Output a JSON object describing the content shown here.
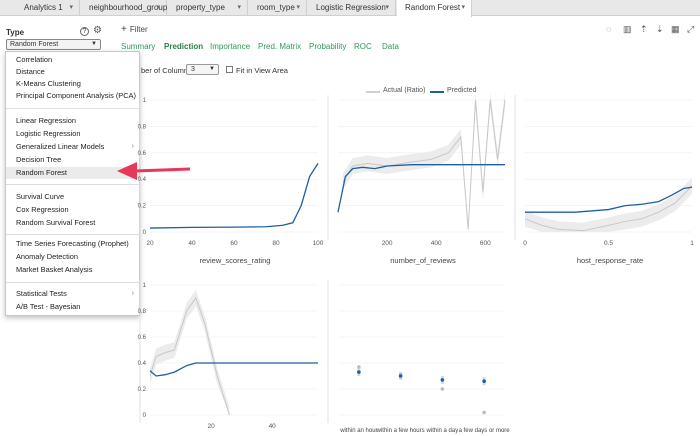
{
  "tabs": [
    {
      "label": "Analytics 1",
      "has_menu": true
    },
    {
      "label": "neighbourhood_group",
      "has_menu": true
    },
    {
      "label": "property_type",
      "has_menu": true
    },
    {
      "label": "room_type",
      "has_menu": true
    },
    {
      "label": "Logistic Regression",
      "has_menu": true
    },
    {
      "label": "Random Forest",
      "has_menu": true,
      "active": true
    }
  ],
  "panel": {
    "type_label": "Type",
    "help_glyph": "?",
    "type_value": "Random Forest"
  },
  "dropdown": {
    "groups": [
      [
        "Correlation",
        "Distance",
        "K-Means Clustering",
        "Principal Component Analysis (PCA)"
      ],
      [
        "Linear Regression",
        "Logistic Regression",
        "Generalized Linear Models",
        "Decision Tree",
        "Random Forest"
      ],
      [
        "Survival Curve",
        "Cox Regression",
        "Random Survival Forest"
      ],
      [
        "Time Series Forecasting (Prophet)",
        "Anomaly Detection",
        "Market Basket Analysis"
      ],
      [
        "Statistical Tests",
        "A/B Test - Bayesian"
      ]
    ],
    "selected": "Random Forest",
    "submenu_items": [
      "Generalized Linear Models",
      "Statistical Tests"
    ]
  },
  "filter_label": "Filter",
  "subtabs": [
    "Summary",
    "Prediction",
    "Importance",
    "Pred. Matrix",
    "Probability",
    "ROC",
    "Data"
  ],
  "active_subtab": "Prediction",
  "toolbar_icons": [
    "comment-icon",
    "chart-icon",
    "upload-icon",
    "download-icon",
    "grid-icon",
    "expand-icon"
  ],
  "columns": {
    "label_visible": "ber of Columns:",
    "value": "3",
    "fit_label": "Fit in View Area"
  },
  "legend": {
    "actual": "Actual (Ratio)",
    "predicted": "Predicted"
  },
  "colors": {
    "predicted": "#1f5fa0",
    "actual": "#c8c8c8",
    "band": "#ececec",
    "accent_green": "#2e9a58",
    "arrow": "#e8385a"
  },
  "chart_data": [
    {
      "type": "line",
      "xlabel": "review_scores_rating",
      "x_ticks": [
        "20",
        "40",
        "60",
        "80",
        "100"
      ],
      "y_ticks": [
        "0",
        "0.2",
        "0.4",
        "0.6",
        "0.8",
        "1"
      ],
      "xlim": [
        20,
        100
      ],
      "ylim": [
        0,
        1
      ],
      "series": [
        {
          "name": "Predicted",
          "points": [
            [
              20,
              0.03
            ],
            [
              40,
              0.035
            ],
            [
              60,
              0.037
            ],
            [
              75,
              0.04
            ],
            [
              83,
              0.05
            ],
            [
              88,
              0.07
            ],
            [
              92,
              0.2
            ],
            [
              96,
              0.42
            ],
            [
              100,
              0.52
            ]
          ]
        }
      ]
    },
    {
      "type": "line",
      "xlabel": "number_of_reviews",
      "x_ticks": [
        "200",
        "400",
        "600"
      ],
      "xlim": [
        0,
        680
      ],
      "ylim": [
        0,
        1
      ],
      "series": [
        {
          "name": "Actual (Ratio)",
          "points": [
            [
              20,
              0.38
            ],
            [
              60,
              0.5
            ],
            [
              120,
              0.52
            ],
            [
              200,
              0.5
            ],
            [
              300,
              0.53
            ],
            [
              380,
              0.55
            ],
            [
              450,
              0.6
            ],
            [
              500,
              0.72
            ],
            [
              530,
              0.02
            ],
            [
              560,
              1.0
            ],
            [
              590,
              0.3
            ],
            [
              620,
              1.0
            ],
            [
              650,
              0.55
            ],
            [
              680,
              1.0
            ]
          ]
        },
        {
          "name": "Predicted",
          "points": [
            [
              0,
              0.15
            ],
            [
              30,
              0.42
            ],
            [
              60,
              0.48
            ],
            [
              100,
              0.49
            ],
            [
              150,
              0.48
            ],
            [
              200,
              0.5
            ],
            [
              300,
              0.51
            ],
            [
              450,
              0.51
            ],
            [
              680,
              0.51
            ]
          ]
        }
      ]
    },
    {
      "type": "line",
      "xlabel": "host_response_rate",
      "x_ticks": [
        "0",
        "0.5",
        "1"
      ],
      "xlim": [
        0,
        1
      ],
      "ylim": [
        0,
        1
      ],
      "series": [
        {
          "name": "Actual (Ratio)",
          "points": [
            [
              0,
              0.1
            ],
            [
              0.1,
              0.05
            ],
            [
              0.2,
              0.02
            ],
            [
              0.35,
              0.01
            ],
            [
              0.5,
              0.05
            ],
            [
              0.6,
              0.08
            ],
            [
              0.7,
              0.1
            ],
            [
              0.8,
              0.15
            ],
            [
              0.9,
              0.22
            ],
            [
              1.0,
              0.35
            ]
          ]
        },
        {
          "name": "Predicted",
          "points": [
            [
              0,
              0.15
            ],
            [
              0.3,
              0.15
            ],
            [
              0.5,
              0.17
            ],
            [
              0.6,
              0.2
            ],
            [
              0.7,
              0.21
            ],
            [
              0.8,
              0.23
            ],
            [
              0.88,
              0.28
            ],
            [
              0.95,
              0.33
            ],
            [
              1.0,
              0.34
            ]
          ]
        }
      ]
    },
    {
      "type": "line",
      "x_ticks": [
        "20",
        "40"
      ],
      "y_ticks": [
        "0",
        "0.2",
        "0.4",
        "0.6",
        "0.8",
        "1"
      ],
      "xlim": [
        0,
        55
      ],
      "ylim": [
        0,
        1
      ],
      "series": [
        {
          "name": "Actual (Ratio)",
          "points": [
            [
              0,
              0.3
            ],
            [
              2,
              0.45
            ],
            [
              5,
              0.48
            ],
            [
              8,
              0.5
            ],
            [
              12,
              0.8
            ],
            [
              15,
              0.9
            ],
            [
              18,
              0.7
            ],
            [
              22,
              0.3
            ],
            [
              26,
              0.0
            ]
          ]
        },
        {
          "name": "Predicted",
          "points": [
            [
              0,
              0.34
            ],
            [
              2,
              0.3
            ],
            [
              5,
              0.31
            ],
            [
              8,
              0.33
            ],
            [
              12,
              0.38
            ],
            [
              15,
              0.4
            ],
            [
              25,
              0.4
            ],
            [
              55,
              0.4
            ]
          ]
        }
      ]
    },
    {
      "type": "scatter",
      "categories": [
        "within an hour",
        "within a few hours",
        "within a day",
        "a few days or more"
      ],
      "ylim": [
        0,
        1
      ],
      "series": [
        {
          "name": "Actual (Ratio)",
          "values": [
            0.37,
            0.31,
            0.2,
            0.02
          ]
        },
        {
          "name": "Predicted",
          "values": [
            0.33,
            0.3,
            0.27,
            0.26
          ]
        }
      ]
    }
  ]
}
